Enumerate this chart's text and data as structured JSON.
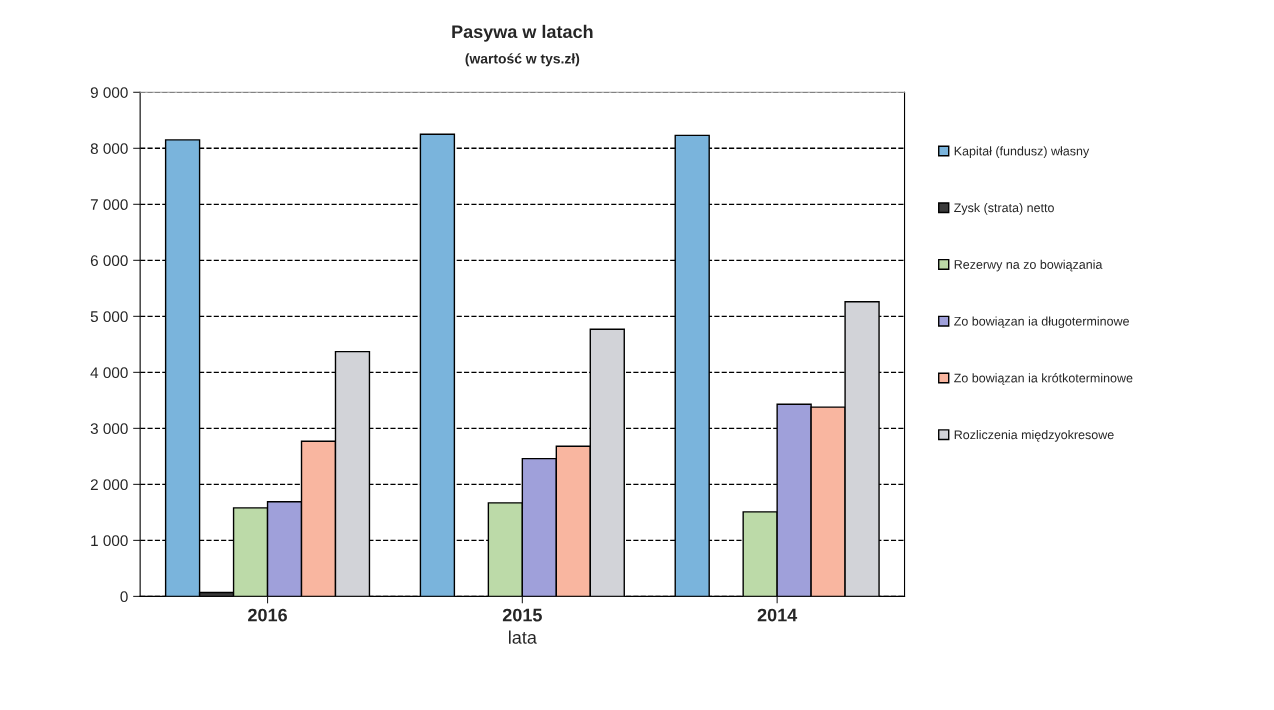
{
  "chart_data": {
    "type": "bar",
    "title": "Pasywa w latach",
    "subtitle": "(wartość w tys.zł)",
    "xlabel": "lata",
    "categories": [
      "2016",
      "2015",
      "2014"
    ],
    "series": [
      {
        "name": "Kapitał (fundusz) własny",
        "color": "#7ab4dc",
        "values": [
          8150,
          8250,
          8230
        ]
      },
      {
        "name": "Zysk (strata) netto",
        "color": "#3a3a3a",
        "values": [
          70,
          null,
          null
        ]
      },
      {
        "name": "Rezerwy na zo bowiązania",
        "color": "#bcdaa8",
        "values": [
          1580,
          1670,
          1510
        ]
      },
      {
        "name": "Zo bowiązan ia długoterminowe",
        "color": "#9fa0da",
        "values": [
          1690,
          2460,
          3430
        ]
      },
      {
        "name": "Zo bowiązan ia krótkoterminowe",
        "color": "#f9b6a0",
        "values": [
          2770,
          2680,
          3380
        ]
      },
      {
        "name": "Rozliczenia międzyokresowe",
        "color": "#d2d3d8",
        "values": [
          4370,
          4770,
          5260
        ]
      }
    ],
    "ylim": [
      0,
      9000
    ],
    "yticks": [
      0,
      {
        "value": 1000,
        "label": "1 000"
      },
      {
        "value": 2000,
        "label": "2 000"
      },
      {
        "value": 3000,
        "label": "3 000"
      },
      {
        "value": 4000,
        "label": "4 000"
      },
      {
        "value": 5000,
        "label": "5 000"
      },
      {
        "value": 6000,
        "label": "6 000"
      },
      {
        "value": 7000,
        "label": "7 000"
      },
      {
        "value": 8000,
        "label": "8 000"
      },
      {
        "value": 9000,
        "label": "9 000"
      }
    ],
    "grid": "y",
    "line_style": "dashed",
    "legend": "right"
  }
}
